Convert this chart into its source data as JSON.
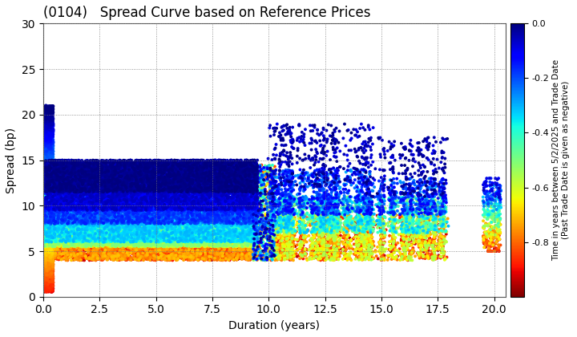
{
  "title": "(0104)   Spread Curve based on Reference Prices",
  "xlabel": "Duration (years)",
  "ylabel": "Spread (bp)",
  "colorbar_label": "Time in years between 5/2/2025 and Trade Date\n(Past Trade Date is given as negative)",
  "xlim": [
    0,
    20.5
  ],
  "ylim": [
    0,
    30
  ],
  "xticks": [
    0.0,
    2.5,
    5.0,
    7.5,
    10.0,
    12.5,
    15.0,
    17.5,
    20.0
  ],
  "yticks": [
    0,
    5,
    10,
    15,
    20,
    25,
    30
  ],
  "cmap": "jet_r",
  "vmin": -1.0,
  "vmax": 0.0,
  "colorbar_ticks": [
    0.0,
    -0.2,
    -0.4,
    -0.6,
    -0.8
  ],
  "bg_color": "#ffffff",
  "grid_color": "#7a7a7a",
  "grid_style": "dotted",
  "point_size": 8,
  "seed": 42
}
